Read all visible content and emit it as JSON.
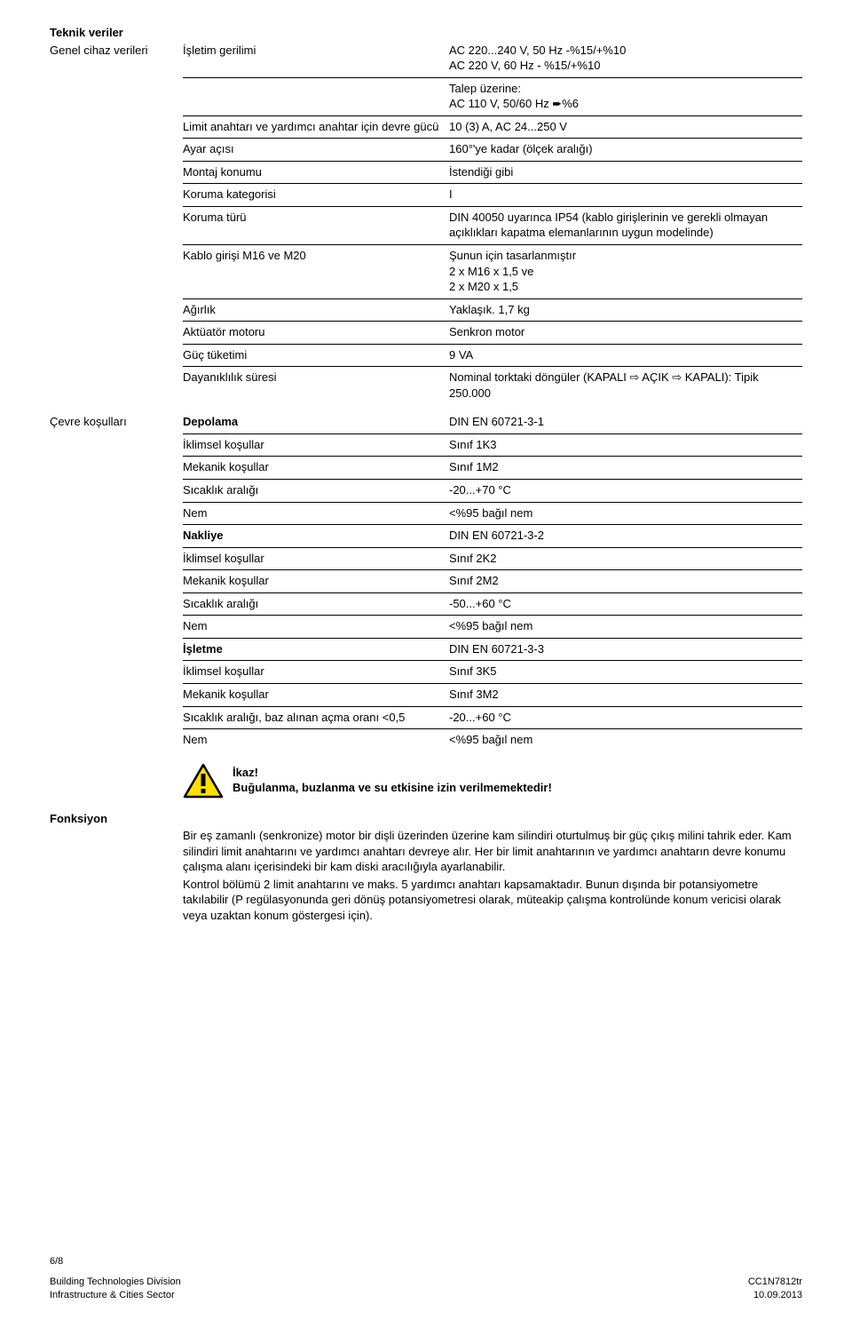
{
  "page": {
    "title": "Teknik veriler",
    "row1_left": "Genel cihaz verileri",
    "row1_mid": "İşletim gerilimi",
    "row1_right_line1": "AC 220...240 V, 50 Hz -%15/+%10",
    "row1_right_line2": "AC 220 V, 60 Hz - %15/+%10",
    "talep_hdr": "Talep üzerine:",
    "talep_val": "AC 110 V, 50/60 Hz ➨%6",
    "specs1": [
      {
        "k": "Limit anahtarı ve yardımcı anahtar için devre gücü",
        "v": "10 (3) A, AC 24...250 V"
      },
      {
        "k": "Ayar açısı",
        "v": "160°'ye kadar (ölçek aralığı)"
      },
      {
        "k": "Montaj konumu",
        "v": "İstendiği gibi"
      },
      {
        "k": "Koruma kategorisi",
        "v": "I"
      },
      {
        "k": "Koruma türü",
        "v": "DIN 40050 uyarınca IP54 (kablo girişlerinin ve gerekli olmayan açıklıkları kapatma elemanlarının uygun modelinde)"
      },
      {
        "k": "Kablo girişi M16 ve M20",
        "v": "Şunun için tasarlanmıştır\n2 x M16 x 1,5 ve\n2 x M20 x 1,5"
      },
      {
        "k": "Ağırlık",
        "v": "Yaklaşık. 1,7 kg"
      },
      {
        "k": "Aktüatör motoru",
        "v": "Senkron motor"
      },
      {
        "k": "Güç tüketimi",
        "v": "9 VA"
      },
      {
        "k": "Dayanıklılık süresi",
        "v": "Nominal torktaki döngüler (KAPALI ⇨ AÇIK ⇨ KAPALI): Tipik 250.000"
      }
    ],
    "env_left": "Çevre koşulları",
    "env_groups": [
      {
        "title": "Depolama",
        "title_val": "DIN EN 60721-3-1",
        "rows": [
          {
            "k": "İklimsel koşullar",
            "v": "Sınıf 1K3"
          },
          {
            "k": "Mekanik koşullar",
            "v": "Sınıf 1M2"
          },
          {
            "k": "Sıcaklık aralığı",
            "v": "-20...+70 °C"
          },
          {
            "k": "Nem",
            "v": "<%95 bağıl nem"
          }
        ]
      },
      {
        "title": "Nakliye",
        "title_val": "DIN EN 60721-3-2",
        "rows": [
          {
            "k": "İklimsel koşullar",
            "v": "Sınıf 2K2"
          },
          {
            "k": "Mekanik koşullar",
            "v": "Sınıf 2M2"
          },
          {
            "k": "Sıcaklık aralığı",
            "v": "-50...+60 °C"
          },
          {
            "k": "Nem",
            "v": "<%95 bağıl nem"
          }
        ]
      },
      {
        "title": "İşletme",
        "title_val": "DIN EN 60721-3-3",
        "rows": [
          {
            "k": "İklimsel koşullar",
            "v": "Sınıf 3K5"
          },
          {
            "k": "Mekanik koşullar",
            "v": "Sınıf 3M2"
          },
          {
            "k": "Sıcaklık aralığı, baz alınan açma oranı <0,5",
            "v": "-20...+60 °C"
          },
          {
            "k": "Nem",
            "v": "<%95 bağıl nem"
          }
        ]
      }
    ],
    "warning_title": "İkaz!",
    "warning_text": "Buğulanma, buzlanma ve su etkisine izin verilmemektedir!",
    "func_title": "Fonksiyon",
    "func_paragraphs": [
      "Bir eş zamanlı (senkronize) motor bir dişli üzerinden üzerine kam silindiri oturtulmuş bir güç çıkış milini tahrik eder. Kam silindiri limit anahtarını ve yardımcı anahtarı devreye alır. Her bir limit anahtarının ve yardımcı anahtarın devre konumu çalışma alanı içerisindeki bir kam diski aracılığıyla ayarlanabilir.",
      "Kontrol bölümü 2 limit anahtarını ve maks. 5 yardımcı anahtarı kapsamaktadır. Bunun dışında bir potansiyometre takılabilir (P regülasyonunda geri dönüş potansiyometresi olarak, müteakip çalışma kontrolünde konum vericisi olarak veya uzaktan konum göstergesi için)."
    ],
    "footer_page": "6/8",
    "footer_left1": "Building Technologies Division",
    "footer_left2": "Infrastructure & Cities Sector",
    "footer_right1": "CC1N7812tr",
    "footer_right2": "10.09.2013"
  },
  "colors": {
    "warning_yellow": "#ffde00",
    "text": "#000000",
    "rule": "#000000"
  }
}
